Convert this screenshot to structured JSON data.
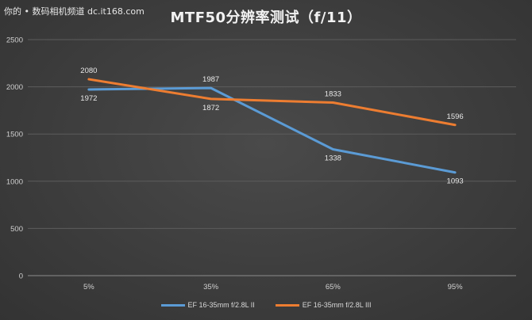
{
  "watermark": "你的 • 数码相机频道 dc.it168.com",
  "chart_data": {
    "type": "line",
    "title": "MTF50分辨率测试（f/11）",
    "categories": [
      "5%",
      "35%",
      "65%",
      "95%"
    ],
    "ylim": [
      0,
      2500
    ],
    "yticks": [
      "0",
      "500",
      "1000",
      "1500",
      "2000",
      "2500"
    ],
    "grid": true,
    "legend": "bottom",
    "series": [
      {
        "name": "EF 16-35mm f/2.8L II",
        "color": "#5b9bd5",
        "values": [
          1972,
          1987,
          1338,
          1093
        ]
      },
      {
        "name": "EF 16-35mm f/2.8L III",
        "color": "#ed7d31",
        "values": [
          2080,
          1872,
          1833,
          1596
        ]
      }
    ]
  }
}
